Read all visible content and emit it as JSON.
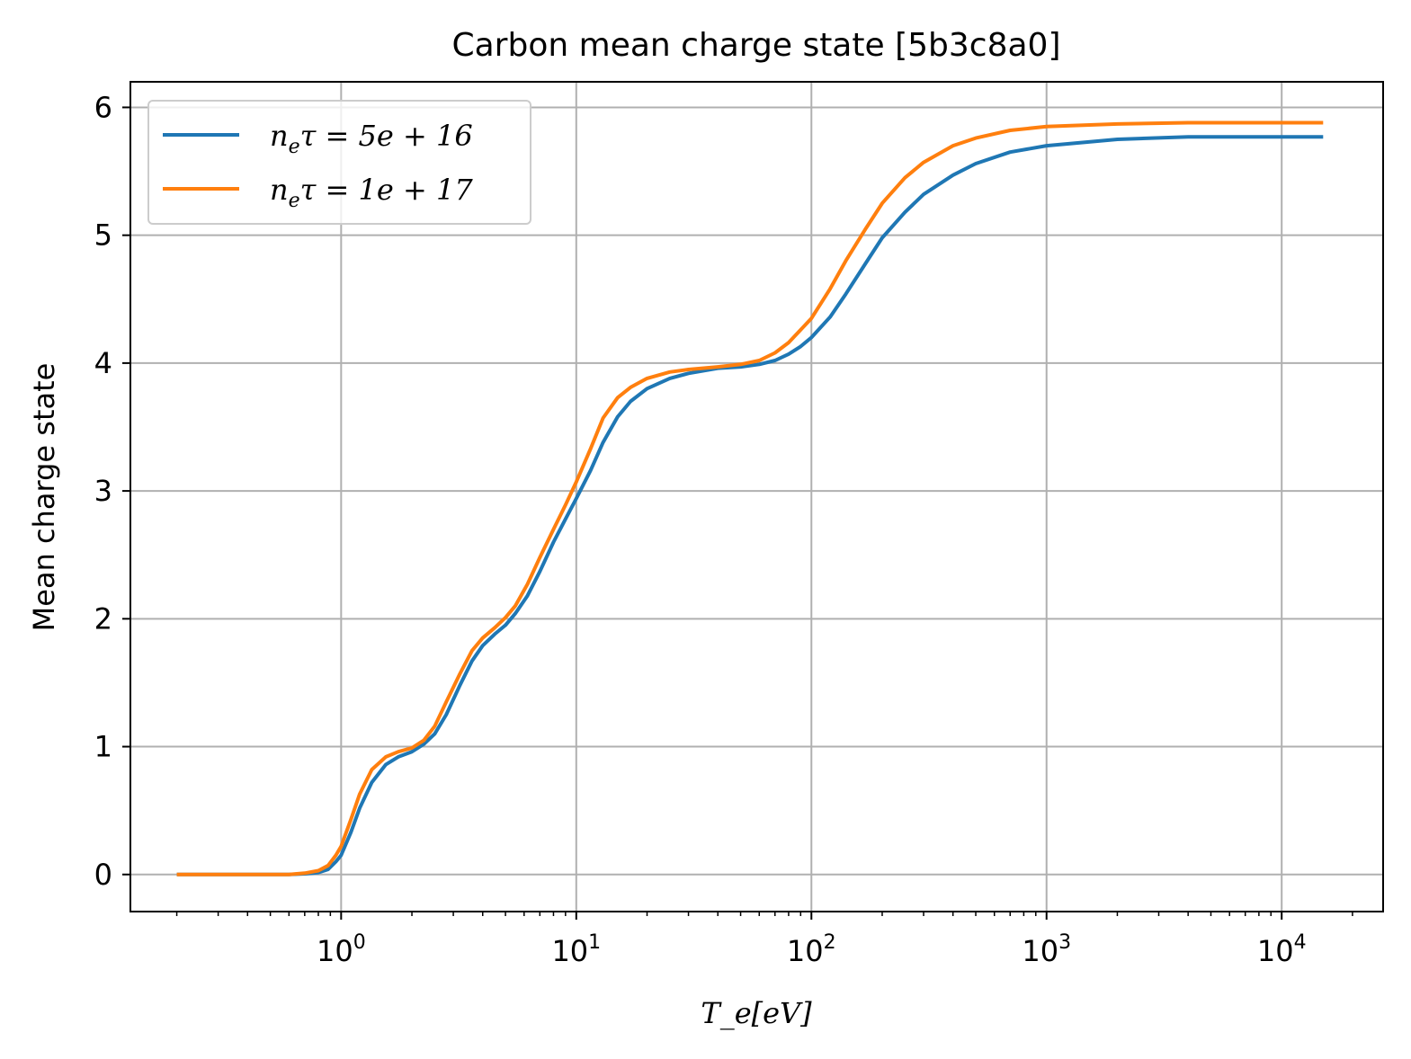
{
  "chart_data": {
    "type": "line",
    "title": "Carbon mean charge state [5b3c8a0]",
    "xlabel": "T_e[eV]",
    "ylabel": "Mean charge state",
    "xscale": "log",
    "xlim": [
      0.127,
      27000
    ],
    "ylim": [
      -0.29,
      6.2
    ],
    "grid": true,
    "legend_position": "top-left",
    "xticks": [
      {
        "value": 1,
        "base": "10",
        "exp": "0"
      },
      {
        "value": 10,
        "base": "10",
        "exp": "1"
      },
      {
        "value": 100,
        "base": "10",
        "exp": "2"
      },
      {
        "value": 1000,
        "base": "10",
        "exp": "3"
      },
      {
        "value": 10000,
        "base": "10",
        "exp": "4"
      }
    ],
    "yticks": [
      {
        "value": 0,
        "label": "0"
      },
      {
        "value": 1,
        "label": "1"
      },
      {
        "value": 2,
        "label": "2"
      },
      {
        "value": 3,
        "label": "3"
      },
      {
        "value": 4,
        "label": "4"
      },
      {
        "value": 5,
        "label": "5"
      },
      {
        "value": 6,
        "label": "6"
      }
    ],
    "series": [
      {
        "name": "n_e τ = 5e + 16",
        "legend_text": {
          "prefix": "n",
          "sub": "e",
          "rest": "τ = 5e + 16"
        },
        "color": "#1f77b4",
        "points": [
          [
            0.2,
            0.0
          ],
          [
            0.4,
            0.0
          ],
          [
            0.6,
            0.0
          ],
          [
            0.7,
            0.005
          ],
          [
            0.8,
            0.015
          ],
          [
            0.88,
            0.04
          ],
          [
            0.95,
            0.1
          ],
          [
            1.0,
            0.15
          ],
          [
            1.1,
            0.33
          ],
          [
            1.2,
            0.52
          ],
          [
            1.35,
            0.72
          ],
          [
            1.55,
            0.86
          ],
          [
            1.75,
            0.92
          ],
          [
            2.0,
            0.96
          ],
          [
            2.25,
            1.02
          ],
          [
            2.5,
            1.1
          ],
          [
            2.8,
            1.25
          ],
          [
            3.2,
            1.48
          ],
          [
            3.6,
            1.67
          ],
          [
            4.0,
            1.79
          ],
          [
            4.5,
            1.88
          ],
          [
            5.0,
            1.95
          ],
          [
            5.5,
            2.04
          ],
          [
            6.2,
            2.18
          ],
          [
            7.0,
            2.37
          ],
          [
            8.0,
            2.6
          ],
          [
            9.0,
            2.78
          ],
          [
            10.0,
            2.94
          ],
          [
            11.5,
            3.16
          ],
          [
            13.0,
            3.38
          ],
          [
            15.0,
            3.58
          ],
          [
            17.0,
            3.7
          ],
          [
            20.0,
            3.8
          ],
          [
            25.0,
            3.88
          ],
          [
            30.0,
            3.92
          ],
          [
            40.0,
            3.96
          ],
          [
            50.0,
            3.97
          ],
          [
            60.0,
            3.99
          ],
          [
            70.0,
            4.02
          ],
          [
            80.0,
            4.07
          ],
          [
            90.0,
            4.13
          ],
          [
            100.0,
            4.2
          ],
          [
            120.0,
            4.36
          ],
          [
            140.0,
            4.54
          ],
          [
            170.0,
            4.78
          ],
          [
            200.0,
            4.98
          ],
          [
            250.0,
            5.18
          ],
          [
            300.0,
            5.32
          ],
          [
            400.0,
            5.47
          ],
          [
            500.0,
            5.56
          ],
          [
            700.0,
            5.65
          ],
          [
            1000.0,
            5.7
          ],
          [
            2000.0,
            5.75
          ],
          [
            4000.0,
            5.77
          ],
          [
            8000.0,
            5.77
          ],
          [
            15000.0,
            5.77
          ]
        ]
      },
      {
        "name": "n_e τ = 1e + 17",
        "legend_text": {
          "prefix": "n",
          "sub": "e",
          "rest": "τ = 1e + 17"
        },
        "color": "#ff7f0e",
        "points": [
          [
            0.2,
            0.0
          ],
          [
            0.4,
            0.0
          ],
          [
            0.6,
            0.0
          ],
          [
            0.7,
            0.01
          ],
          [
            0.8,
            0.03
          ],
          [
            0.88,
            0.07
          ],
          [
            0.95,
            0.15
          ],
          [
            1.0,
            0.22
          ],
          [
            1.1,
            0.43
          ],
          [
            1.2,
            0.63
          ],
          [
            1.35,
            0.82
          ],
          [
            1.55,
            0.92
          ],
          [
            1.75,
            0.96
          ],
          [
            2.0,
            0.99
          ],
          [
            2.25,
            1.05
          ],
          [
            2.5,
            1.16
          ],
          [
            2.8,
            1.35
          ],
          [
            3.2,
            1.57
          ],
          [
            3.6,
            1.75
          ],
          [
            4.0,
            1.85
          ],
          [
            4.5,
            1.93
          ],
          [
            5.0,
            2.01
          ],
          [
            5.5,
            2.1
          ],
          [
            6.2,
            2.27
          ],
          [
            7.0,
            2.48
          ],
          [
            8.0,
            2.7
          ],
          [
            9.0,
            2.89
          ],
          [
            10.0,
            3.07
          ],
          [
            11.5,
            3.33
          ],
          [
            13.0,
            3.57
          ],
          [
            15.0,
            3.73
          ],
          [
            17.0,
            3.81
          ],
          [
            20.0,
            3.88
          ],
          [
            25.0,
            3.93
          ],
          [
            30.0,
            3.95
          ],
          [
            40.0,
            3.97
          ],
          [
            50.0,
            3.99
          ],
          [
            60.0,
            4.02
          ],
          [
            70.0,
            4.08
          ],
          [
            80.0,
            4.16
          ],
          [
            90.0,
            4.26
          ],
          [
            100.0,
            4.35
          ],
          [
            120.0,
            4.58
          ],
          [
            140.0,
            4.8
          ],
          [
            170.0,
            5.05
          ],
          [
            200.0,
            5.25
          ],
          [
            250.0,
            5.45
          ],
          [
            300.0,
            5.57
          ],
          [
            400.0,
            5.7
          ],
          [
            500.0,
            5.76
          ],
          [
            700.0,
            5.82
          ],
          [
            1000.0,
            5.85
          ],
          [
            2000.0,
            5.87
          ],
          [
            4000.0,
            5.88
          ],
          [
            8000.0,
            5.88
          ],
          [
            15000.0,
            5.88
          ]
        ]
      }
    ]
  }
}
